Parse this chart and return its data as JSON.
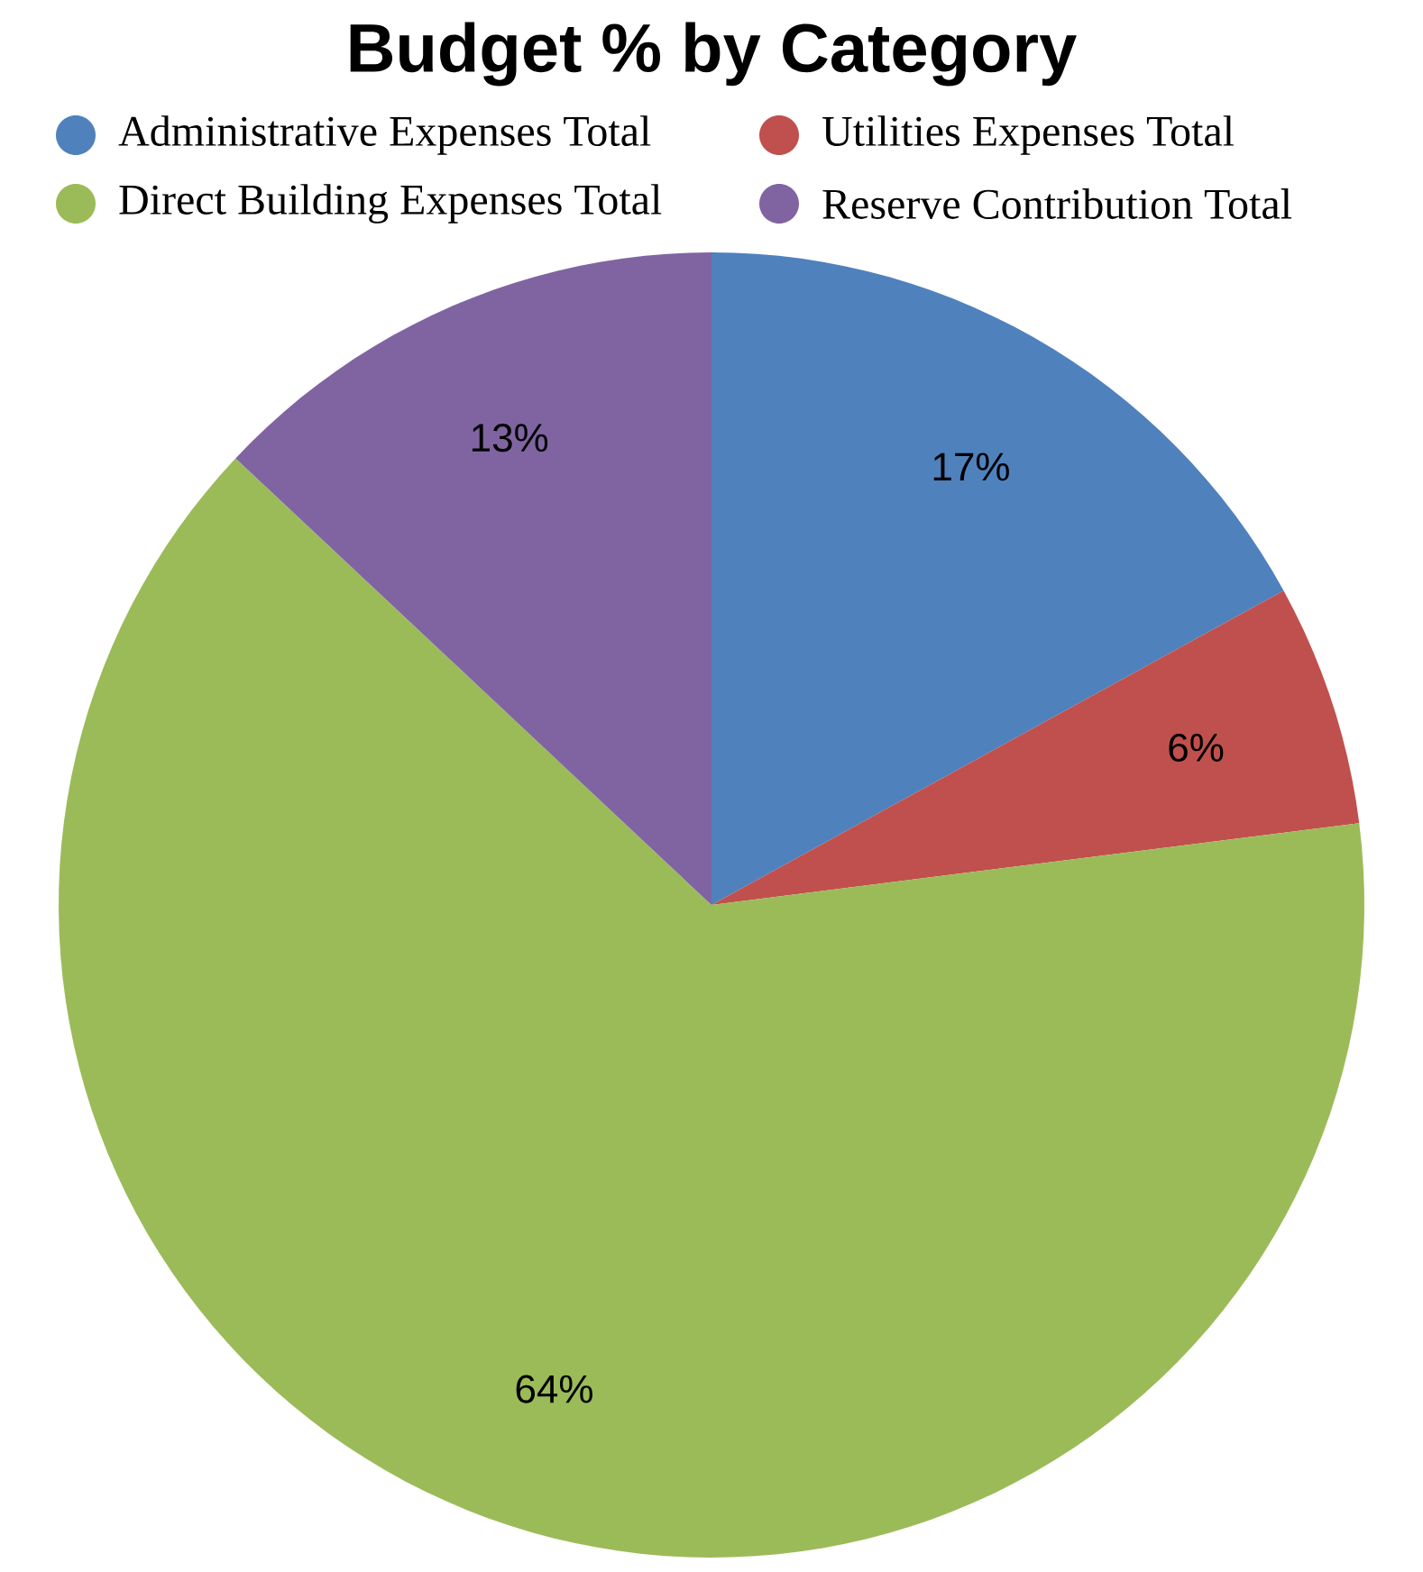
{
  "chart_data": {
    "type": "pie",
    "title": "Budget % by Category",
    "categories": [
      "Administrative Expenses Total",
      "Utilities Expenses Total",
      "Direct Building Expenses Total",
      "Reserve Contribution Total"
    ],
    "values": [
      17,
      6,
      64,
      13
    ],
    "value_labels": [
      "17%",
      "6%",
      "64%",
      "13%"
    ],
    "colors": [
      "#4f81bd",
      "#c0504d",
      "#9bbb59",
      "#8064a2"
    ],
    "legend": "top"
  }
}
